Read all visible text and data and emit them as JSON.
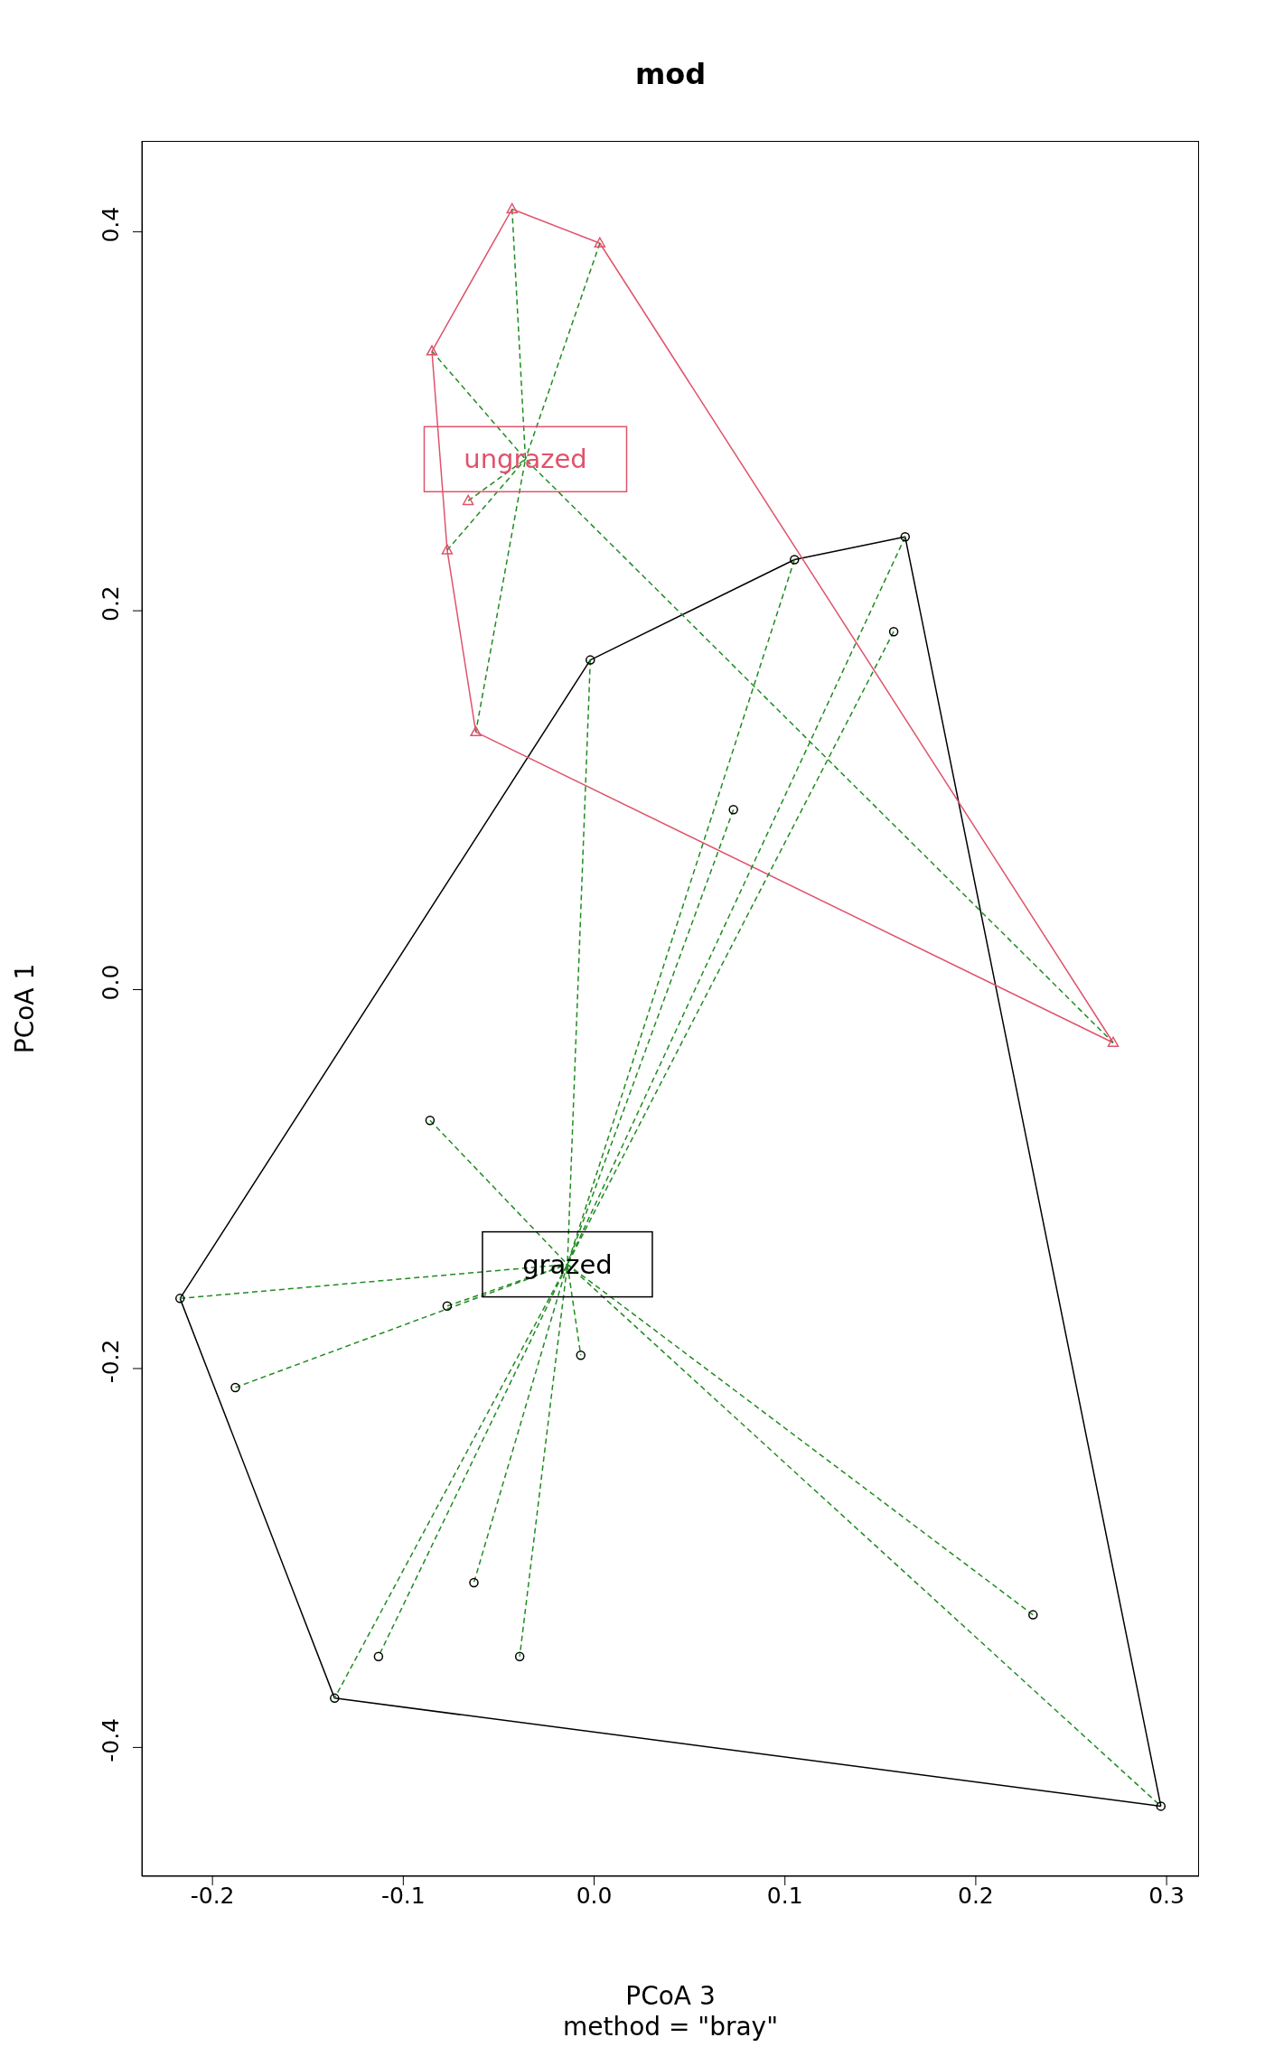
{
  "chart_data": {
    "type": "scatter",
    "title": "mod",
    "xlabel": "PCoA 3",
    "ylabel": "PCoA 1",
    "xlim": [
      -0.237,
      0.317
    ],
    "ylim": [
      -0.468,
      0.448
    ],
    "xticks": [
      -0.2,
      -0.1,
      {
        "value": 0,
        "label": "0.0"
      },
      0.1,
      0.2,
      0.3
    ],
    "yticks": [
      -0.4,
      -0.2,
      {
        "value": 0,
        "label": "0.0"
      },
      0.2,
      0.4
    ],
    "grid": false,
    "legend": false,
    "annotations": [
      {
        "text": "grazed",
        "x": -0.014,
        "y": -0.145
      },
      {
        "text": "ungrazed",
        "x": -0.036,
        "y": 0.28
      },
      "method = \"bray\""
    ],
    "series": [
      {
        "marker": "circle",
        "color": "#000000",
        "x": [
          -0.002,
          0.105,
          0.163,
          0.157,
          0.073,
          -0.086,
          -0.217,
          -0.077,
          -0.188,
          -0.007,
          -0.063,
          -0.113,
          -0.039,
          -0.136,
          0.23,
          0.297
        ],
        "values": [
          0.174,
          0.227,
          0.239,
          0.189,
          0.095,
          -0.069,
          -0.163,
          -0.167,
          -0.21,
          -0.193,
          -0.313,
          -0.352,
          -0.352,
          -0.374,
          -0.33,
          -0.431
        ]
      },
      {
        "marker": "triangle",
        "color": "#df536b",
        "x": [
          -0.043,
          0.003,
          -0.085,
          -0.066,
          -0.077,
          -0.062,
          0.272
        ],
        "values": [
          0.412,
          0.394,
          0.337,
          0.258,
          0.232,
          0.136,
          -0.028
        ]
      },
      {
        "type": "line",
        "line_style": "solid",
        "color": "#000000",
        "x": [
          -0.217,
          -0.002,
          0.105,
          0.163,
          0.297
        ],
        "values": [
          -0.163,
          0.174,
          0.227,
          0.239,
          -0.431
        ]
      },
      {
        "type": "line",
        "line_style": "solid",
        "color": "#000000",
        "x": [
          -0.217,
          -0.136,
          0.297
        ],
        "values": [
          -0.163,
          -0.374,
          -0.431
        ]
      },
      {
        "type": "line",
        "line_style": "solid",
        "color": "#df536b",
        "x": [
          -0.085,
          -0.043,
          0.003,
          0.272
        ],
        "values": [
          0.337,
          0.412,
          0.394,
          -0.028
        ]
      },
      {
        "type": "line",
        "line_style": "solid",
        "color": "#df536b",
        "x": [
          -0.085,
          -0.077,
          -0.062,
          0.272
        ],
        "values": [
          0.337,
          0.232,
          0.136,
          -0.028
        ]
      },
      {
        "type": "line",
        "line_style": "dashed",
        "color": "#228b22",
        "x": [
          -0.002,
          -0.014,
          -0.007
        ],
        "values": [
          0.174,
          -0.145,
          -0.193
        ]
      },
      {
        "type": "line",
        "line_style": "dashed",
        "color": "#228b22",
        "x": [
          0.105,
          -0.014,
          -0.063
        ],
        "values": [
          0.227,
          -0.145,
          -0.313
        ]
      },
      {
        "type": "line",
        "line_style": "dashed",
        "color": "#228b22",
        "x": [
          0.163,
          -0.014,
          -0.113
        ],
        "values": [
          0.239,
          -0.145,
          -0.352
        ]
      },
      {
        "type": "line",
        "line_style": "dashed",
        "color": "#228b22",
        "x": [
          0.157,
          -0.014,
          -0.136
        ],
        "values": [
          0.189,
          -0.145,
          -0.374
        ]
      },
      {
        "type": "line",
        "line_style": "dashed",
        "color": "#228b22",
        "x": [
          0.073,
          -0.014,
          -0.039
        ],
        "values": [
          0.095,
          -0.145,
          -0.352
        ]
      },
      {
        "type": "line",
        "line_style": "dashed",
        "color": "#228b22",
        "x": [
          -0.086,
          -0.014,
          0.297
        ],
        "values": [
          -0.069,
          -0.145,
          -0.431
        ]
      },
      {
        "type": "line",
        "line_style": "dashed",
        "color": "#228b22",
        "x": [
          -0.217,
          -0.014
        ],
        "values": [
          -0.163,
          -0.145
        ]
      },
      {
        "type": "line",
        "line_style": "dashed",
        "color": "#228b22",
        "x": [
          -0.077,
          -0.014
        ],
        "values": [
          -0.167,
          -0.145
        ]
      },
      {
        "type": "line",
        "line_style": "dashed",
        "color": "#228b22",
        "x": [
          -0.188,
          -0.014
        ],
        "values": [
          -0.21,
          -0.145
        ]
      },
      {
        "type": "line",
        "line_style": "dashed",
        "color": "#228b22",
        "x": [
          0.23,
          -0.014
        ],
        "values": [
          -0.33,
          -0.145
        ]
      },
      {
        "type": "line",
        "line_style": "dashed",
        "color": "#228b22",
        "x": [
          -0.043,
          -0.036,
          -0.062
        ],
        "values": [
          0.412,
          0.28,
          0.136
        ]
      },
      {
        "type": "line",
        "line_style": "dashed",
        "color": "#228b22",
        "x": [
          0.003,
          -0.036,
          -0.077
        ],
        "values": [
          0.394,
          0.28,
          0.232
        ]
      },
      {
        "type": "line",
        "line_style": "dashed",
        "color": "#228b22",
        "x": [
          -0.085,
          -0.036,
          0.272
        ],
        "values": [
          0.337,
          0.28,
          -0.028
        ]
      },
      {
        "type": "line",
        "line_style": "dashed",
        "color": "#228b22",
        "x": [
          -0.066,
          -0.036
        ],
        "values": [
          0.258,
          0.28
        ]
      }
    ]
  }
}
